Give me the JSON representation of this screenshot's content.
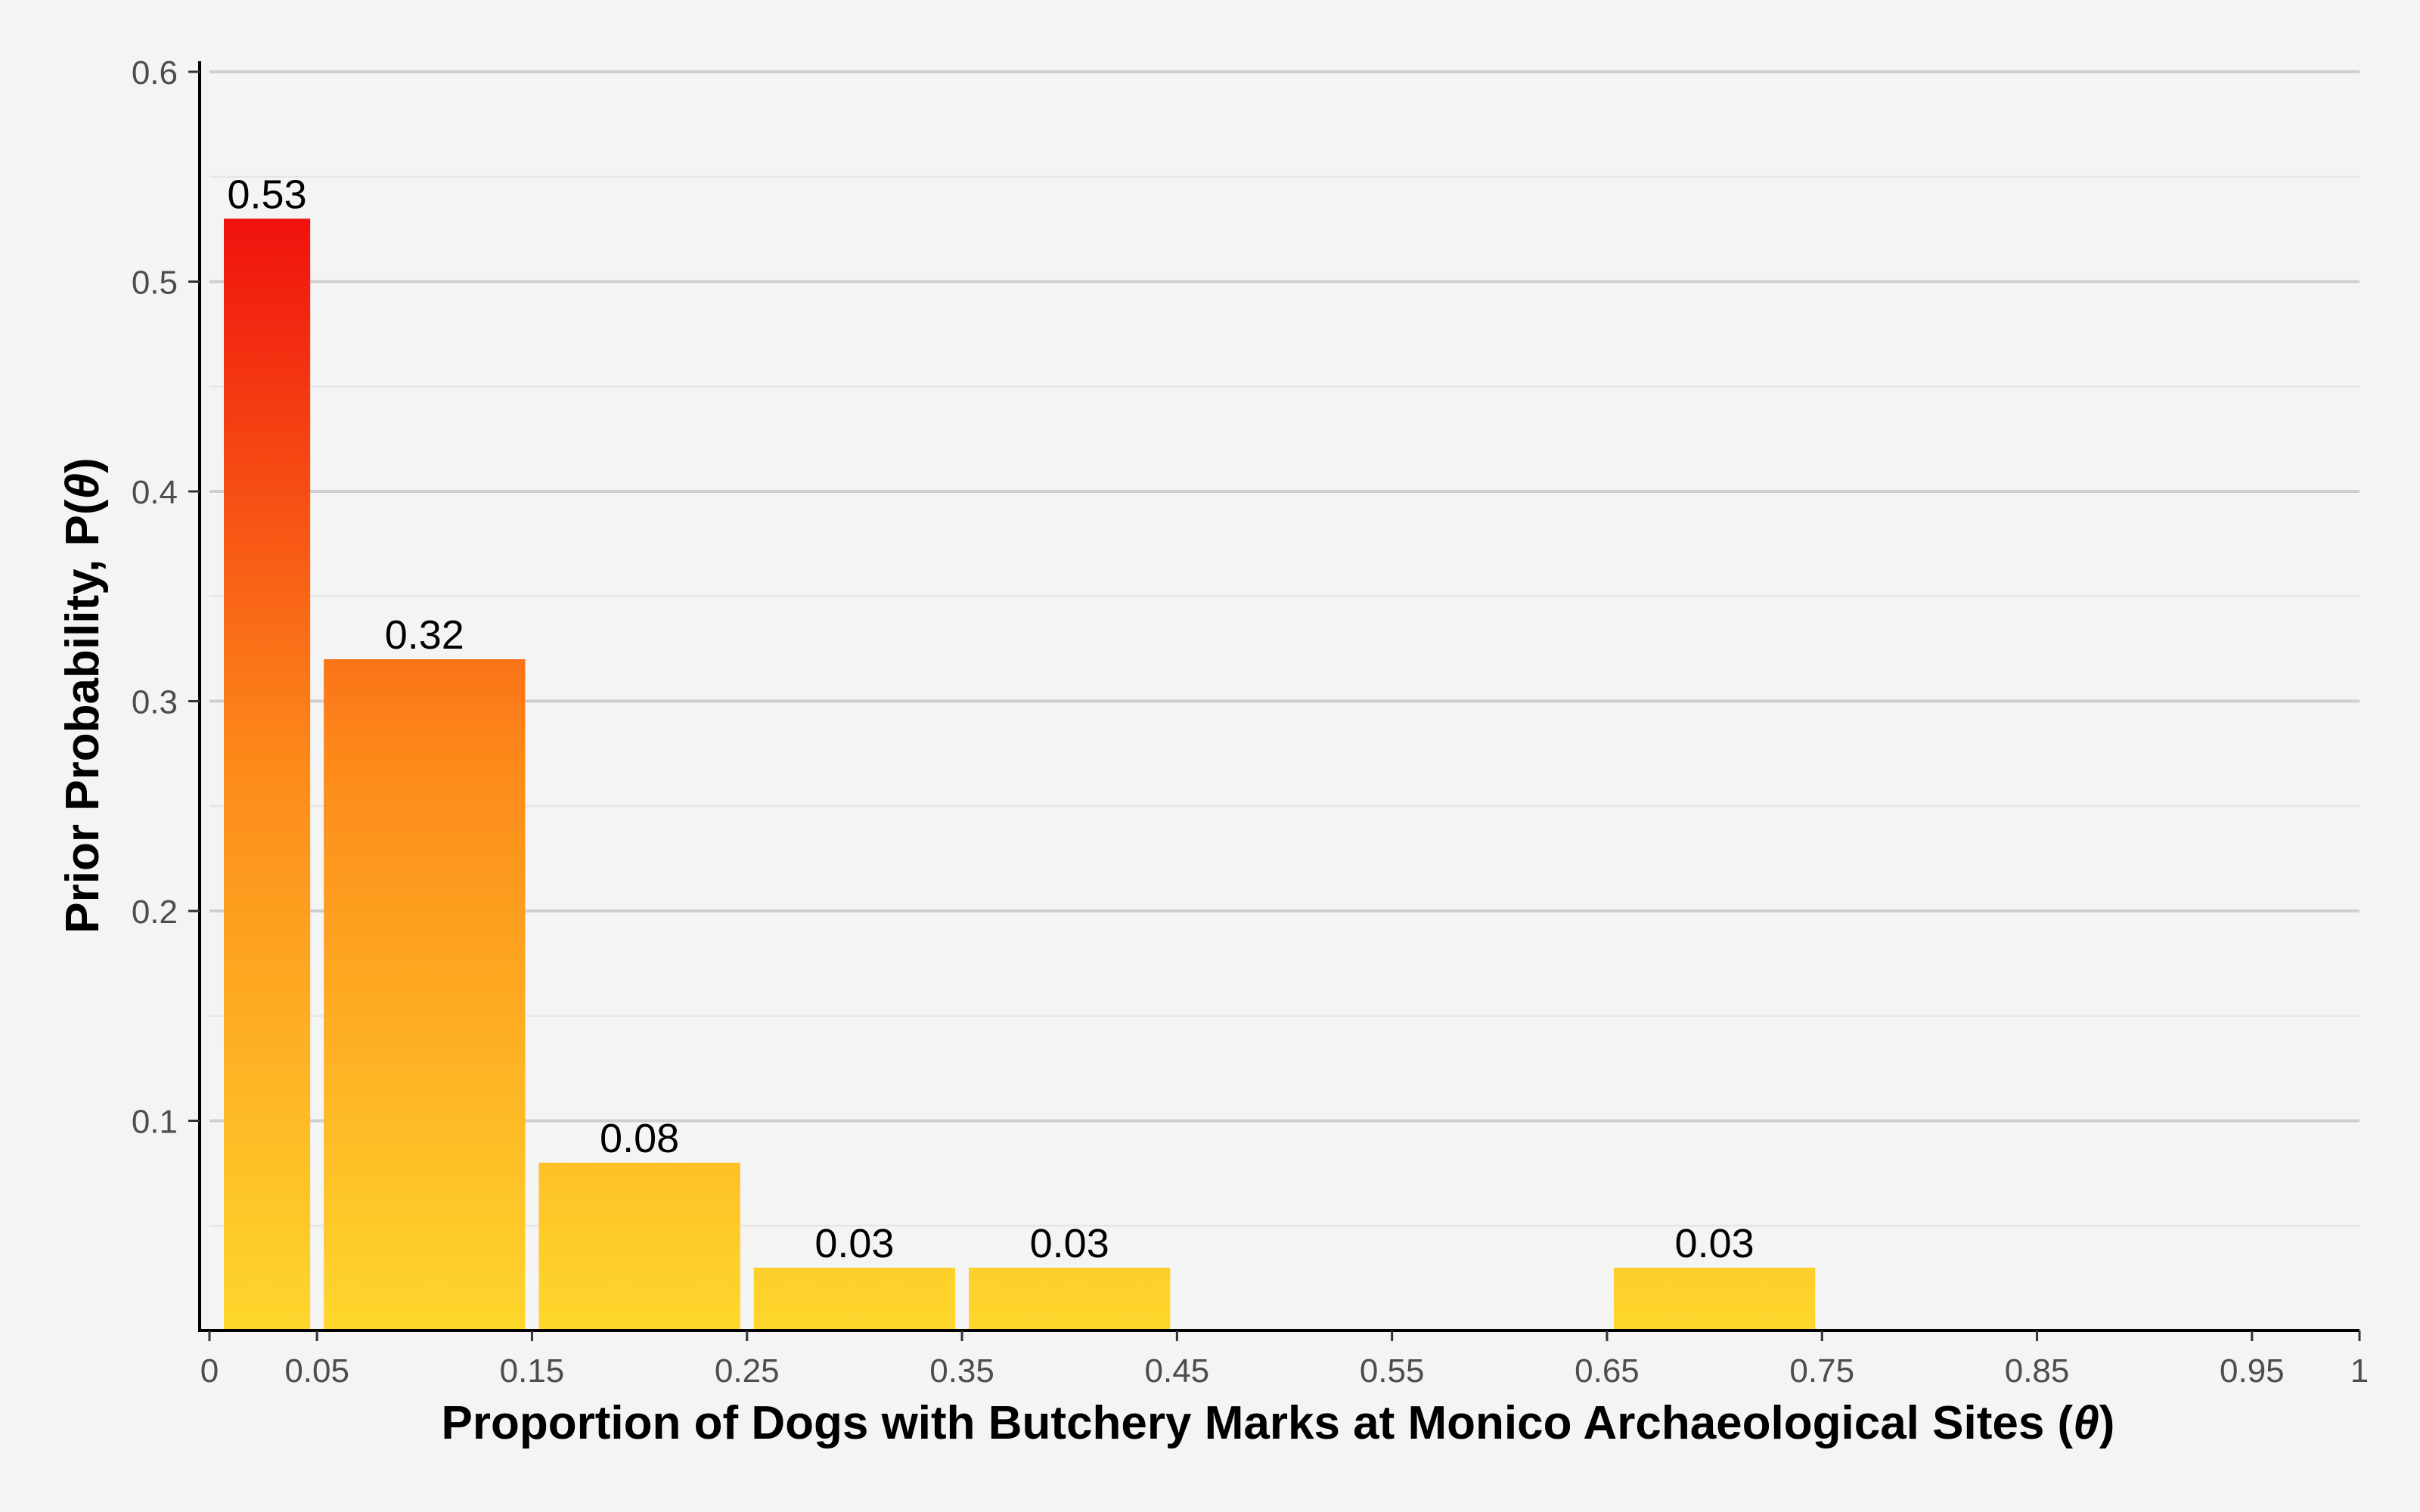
{
  "chart_data": {
    "type": "bar",
    "title": "",
    "xlabel_parts": [
      "Proportion of Dogs with Butchery Marks at Monico Archaeological Sites (",
      "θ",
      ")"
    ],
    "ylabel_parts": [
      "Prior Probability, P(",
      "θ",
      ")"
    ],
    "bars": [
      {
        "x_start": 0.0,
        "x_end": 0.05,
        "value": 0.53,
        "label": "0.53"
      },
      {
        "x_start": 0.05,
        "x_end": 0.15,
        "value": 0.32,
        "label": "0.32"
      },
      {
        "x_start": 0.15,
        "x_end": 0.25,
        "value": 0.08,
        "label": "0.08"
      },
      {
        "x_start": 0.25,
        "x_end": 0.35,
        "value": 0.03,
        "label": "0.03"
      },
      {
        "x_start": 0.35,
        "x_end": 0.45,
        "value": 0.03,
        "label": "0.03"
      },
      {
        "x_start": 0.65,
        "x_end": 0.75,
        "value": 0.03,
        "label": "0.03"
      }
    ],
    "x_ticks": [
      {
        "value": 0,
        "label": "0"
      },
      {
        "value": 0.05,
        "label": "0.05"
      },
      {
        "value": 0.15,
        "label": "0.15"
      },
      {
        "value": 0.25,
        "label": "0.25"
      },
      {
        "value": 0.35,
        "label": "0.35"
      },
      {
        "value": 0.45,
        "label": "0.45"
      },
      {
        "value": 0.55,
        "label": "0.55"
      },
      {
        "value": 0.65,
        "label": "0.65"
      },
      {
        "value": 0.75,
        "label": "0.75"
      },
      {
        "value": 0.85,
        "label": "0.85"
      },
      {
        "value": 0.95,
        "label": "0.95"
      },
      {
        "value": 1,
        "label": "1"
      }
    ],
    "y_ticks": [
      {
        "value": 0.1,
        "label": "0.1"
      },
      {
        "value": 0.2,
        "label": "0.2"
      },
      {
        "value": 0.3,
        "label": "0.3"
      },
      {
        "value": 0.4,
        "label": "0.4"
      },
      {
        "value": 0.5,
        "label": "0.5"
      },
      {
        "value": 0.6,
        "label": "0.6"
      }
    ],
    "xlim": [
      0,
      1
    ],
    "ylim": [
      0,
      0.6
    ],
    "grid": "horizontal",
    "legend": "none",
    "colors": {
      "gradient_high": "#ef0d0d",
      "gradient_low": "#fed72c",
      "grid_major": "#cfcfcf",
      "grid_minor": "#e6e6e6",
      "axis_line": "#000000",
      "background": "#f4f4f4"
    }
  }
}
